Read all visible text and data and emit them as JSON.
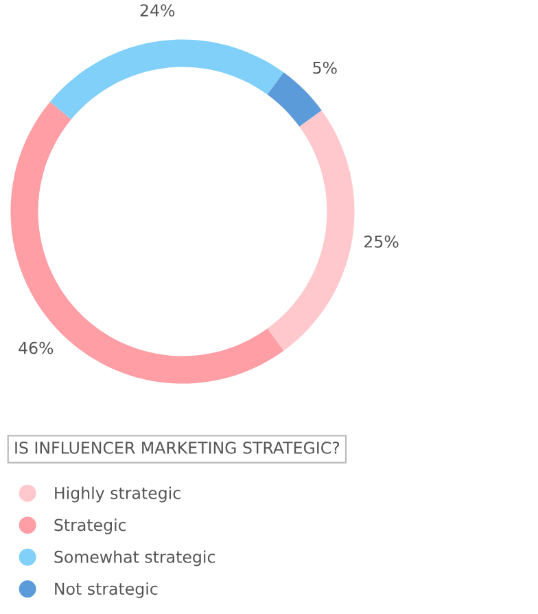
{
  "chart_data": {
    "type": "donut",
    "title": "IS INFLUENCER MARKETING STRATEGIC?",
    "categories": [
      "Highly strategic",
      "Strategic",
      "Somewhat strategic",
      "Not strategic"
    ],
    "values": [
      25,
      46,
      24,
      5
    ],
    "colors": [
      "#ffc8cc",
      "#ff9ea4",
      "#80d0fa",
      "#5c9bd9"
    ],
    "value_labels": [
      "25%",
      "46%",
      "24%",
      "5%"
    ],
    "legend": "bottom left"
  }
}
